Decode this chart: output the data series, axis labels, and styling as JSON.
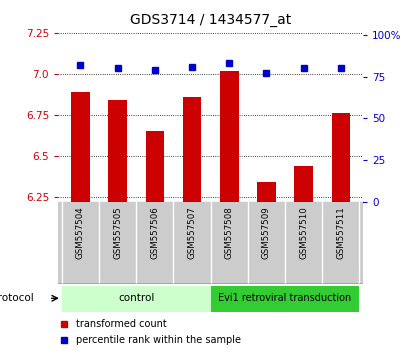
{
  "title": "GDS3714 / 1434577_at",
  "samples": [
    "GSM557504",
    "GSM557505",
    "GSM557506",
    "GSM557507",
    "GSM557508",
    "GSM557509",
    "GSM557510",
    "GSM557511"
  ],
  "red_values": [
    6.89,
    6.84,
    6.65,
    6.86,
    7.02,
    6.34,
    6.44,
    6.76
  ],
  "blue_values": [
    82,
    80,
    79,
    81,
    83,
    77,
    80,
    80
  ],
  "ylim_left": [
    6.22,
    7.28
  ],
  "ylim_right": [
    0,
    104
  ],
  "yticks_left": [
    6.25,
    6.5,
    6.75,
    7.0,
    7.25
  ],
  "yticks_right": [
    0,
    25,
    50,
    75,
    100
  ],
  "ytick_labels_right": [
    "0",
    "25",
    "50",
    "75",
    "100%"
  ],
  "control_count": 4,
  "protocol_label": "protocol",
  "control_label": "control",
  "treatment_label": "Evi1 retroviral transduction",
  "legend_red": "transformed count",
  "legend_blue": "percentile rank within the sample",
  "bar_color": "#cc0000",
  "dot_color": "#0000cc",
  "control_bg": "#ccffcc",
  "treatment_bg": "#33cc33",
  "tick_area_bg": "#cccccc",
  "title_fontsize": 10,
  "tick_fontsize": 7.5,
  "bar_width": 0.5
}
